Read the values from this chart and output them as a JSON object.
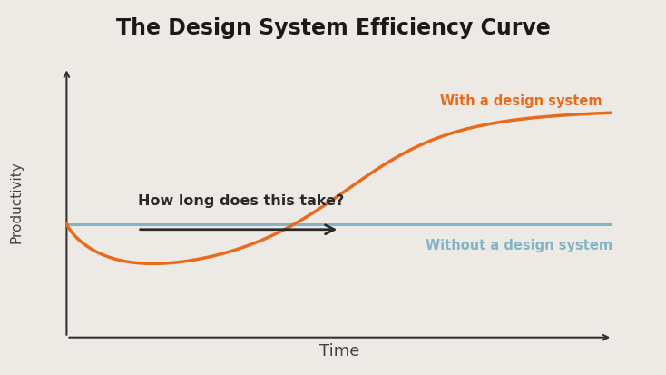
{
  "title": "The Design System Efficiency Curve",
  "title_fontsize": 17,
  "title_fontweight": "bold",
  "xlabel": "Time",
  "ylabel": "Productivity",
  "xlabel_fontsize": 13,
  "ylabel_fontsize": 11,
  "background_color": "#EDEAE5",
  "axes_background_color": "#EDEAE5",
  "with_ds_label": "With a design system",
  "without_ds_label": "Without a design system",
  "with_ds_color": "#E86A1A",
  "without_ds_color": "#85B4C8",
  "annotation_text": "How long does this take?",
  "annotation_color": "#2a2a2a",
  "annotation_fontsize": 11.5,
  "annotation_fontweight": "bold",
  "axis_color": "#333333",
  "axis_lw": 1.5
}
